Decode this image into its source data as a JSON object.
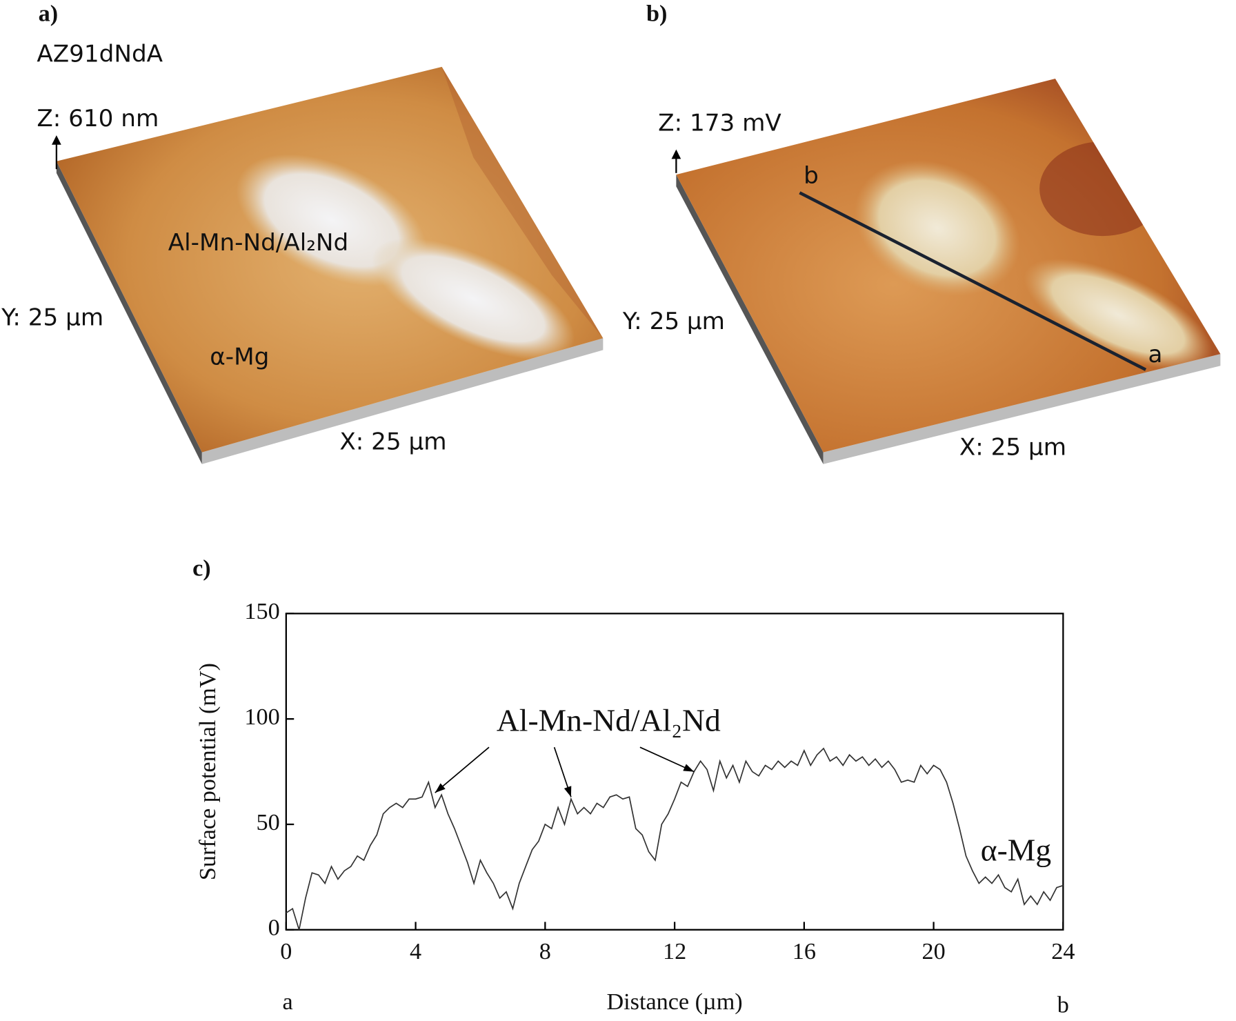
{
  "panels": {
    "a": {
      "label": "a)",
      "sample": "AZ91dNdA",
      "z": "Z: 610 nm",
      "phase1": "Al-Mn-Nd/Al₂Nd",
      "y": "Y: 25 µm",
      "phase2": "α-Mg",
      "x": "X: 25 µm"
    },
    "b": {
      "label": "b)",
      "z": "Z: 173 mV",
      "start": "b",
      "y": "Y: 25 µm",
      "end": "a",
      "x": "X: 25 µm"
    }
  },
  "chart_data": {
    "type": "line",
    "panel_label": "c)",
    "ylabel": "Surface potential (mV)",
    "xlabel": "Distance (µm)",
    "x_start_label": "a",
    "x_end_label": "b",
    "annotations": [
      "Al-Mn-Nd/Al₂Nd",
      "α-Mg"
    ],
    "color": "#333333",
    "xlim": [
      0,
      24
    ],
    "xticks": [
      0,
      4,
      8,
      12,
      16,
      20,
      24
    ],
    "ylim": [
      0,
      150
    ],
    "yticks": [
      0,
      50,
      100,
      150
    ],
    "x": [
      0,
      0.2,
      0.4,
      0.6,
      0.8,
      1,
      1.2,
      1.4,
      1.6,
      1.8,
      2,
      2.2,
      2.4,
      2.6,
      2.8,
      3,
      3.2,
      3.4,
      3.6,
      3.8,
      4,
      4.2,
      4.4,
      4.6,
      4.8,
      5,
      5.2,
      5.4,
      5.6,
      5.8,
      6,
      6.2,
      6.4,
      6.6,
      6.8,
      7,
      7.2,
      7.4,
      7.6,
      7.8,
      8,
      8.2,
      8.4,
      8.6,
      8.8,
      9,
      9.2,
      9.4,
      9.6,
      9.8,
      10,
      10.2,
      10.4,
      10.6,
      10.8,
      11,
      11.2,
      11.4,
      11.6,
      11.8,
      12,
      12.2,
      12.4,
      12.6,
      12.8,
      13,
      13.2,
      13.4,
      13.6,
      13.8,
      14,
      14.2,
      14.4,
      14.6,
      14.8,
      15,
      15.2,
      15.4,
      15.6,
      15.8,
      16,
      16.2,
      16.4,
      16.6,
      16.8,
      17,
      17.2,
      17.4,
      17.6,
      17.8,
      18,
      18.2,
      18.4,
      18.6,
      18.8,
      19,
      19.2,
      19.4,
      19.6,
      19.8,
      20,
      20.2,
      20.4,
      20.6,
      20.8,
      21,
      21.2,
      21.4,
      21.6,
      21.8,
      22,
      22.2,
      22.4,
      22.6,
      22.8,
      23,
      23.2,
      23.4,
      23.6,
      23.8,
      24
    ],
    "values": [
      8,
      10,
      0,
      15,
      27,
      26,
      22,
      30,
      24,
      28,
      30,
      35,
      33,
      40,
      45,
      55,
      58,
      60,
      58,
      62,
      62,
      63,
      70,
      58,
      64,
      55,
      48,
      40,
      32,
      22,
      33,
      27,
      22,
      15,
      18,
      10,
      22,
      30,
      38,
      42,
      50,
      48,
      58,
      50,
      62,
      55,
      58,
      55,
      60,
      58,
      63,
      64,
      62,
      63,
      48,
      45,
      37,
      33,
      50,
      55,
      62,
      70,
      68,
      75,
      80,
      76,
      66,
      80,
      72,
      78,
      70,
      80,
      75,
      73,
      78,
      76,
      80,
      77,
      80,
      78,
      85,
      78,
      83,
      86,
      80,
      82,
      78,
      83,
      80,
      82,
      78,
      81,
      77,
      80,
      76,
      70,
      71,
      70,
      78,
      74,
      78,
      76,
      70,
      60,
      48,
      35,
      28,
      22,
      25,
      22,
      26,
      20,
      18,
      24,
      12,
      16,
      12,
      18,
      14,
      20,
      21
    ]
  }
}
